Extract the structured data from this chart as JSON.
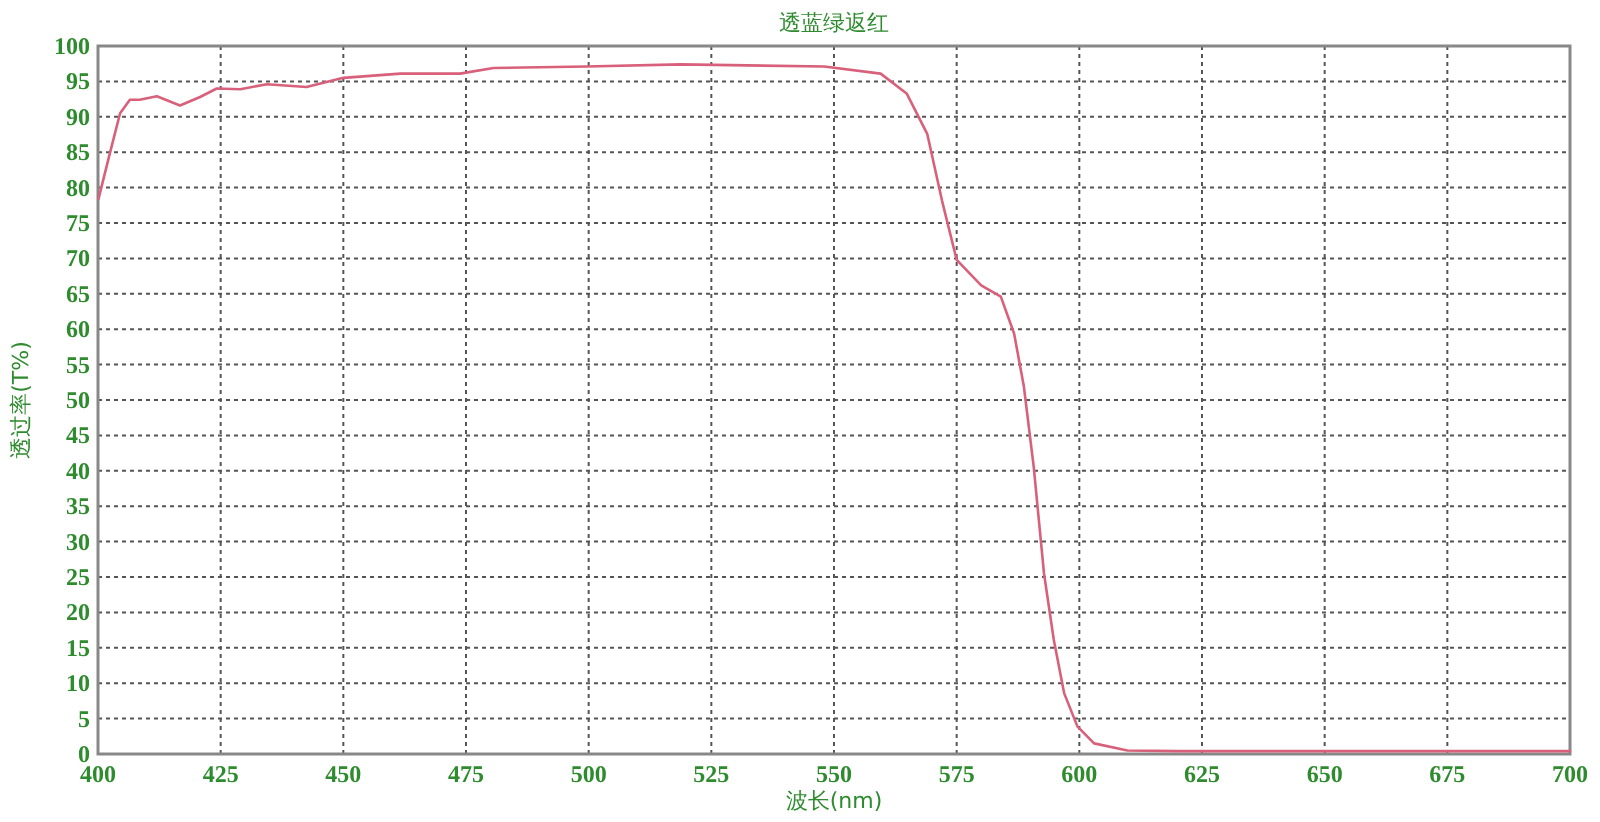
{
  "chart_data": {
    "type": "line",
    "title": "透蓝绿返红",
    "xlabel": "波长(nm)",
    "ylabel": "透过率(T%)",
    "x": [
      400.1,
      402.4,
      404.5,
      406.5,
      408.5,
      412,
      416.7,
      420.8,
      424.2,
      429,
      434.4,
      442.5,
      450,
      461.6,
      473.8,
      480.6,
      499.6,
      518.7,
      548,
      559.5,
      564.8,
      569,
      572,
      575,
      580,
      584,
      586.7,
      588.7,
      590.7,
      592.8,
      594.8,
      596.9,
      599.6,
      603,
      609.8,
      620,
      700
    ],
    "series": [
      {
        "color": "#d9607a",
        "values": [
          78.4,
          84.8,
          90.5,
          92.4,
          92.4,
          92.9,
          91.6,
          92.8,
          94,
          93.9,
          94.6,
          94.2,
          95.5,
          96.1,
          96.1,
          96.9,
          97.1,
          97.4,
          97.1,
          96.1,
          93.3,
          87.6,
          78.2,
          69.8,
          66.2,
          64.6,
          59.4,
          51.9,
          40.6,
          25.5,
          16.1,
          8.6,
          3.9,
          1.5,
          0.5,
          0.4,
          0.4
        ]
      }
    ],
    "xlim": [
      400,
      700
    ],
    "ylim": [
      0,
      100
    ],
    "xticks": [
      400,
      425,
      450,
      475,
      500,
      525,
      550,
      575,
      600,
      625,
      650,
      675,
      700
    ],
    "yticks": [
      0,
      5,
      10,
      15,
      20,
      25,
      30,
      35,
      40,
      45,
      50,
      55,
      60,
      65,
      70,
      75,
      80,
      85,
      90,
      95,
      100
    ],
    "grid": true
  }
}
